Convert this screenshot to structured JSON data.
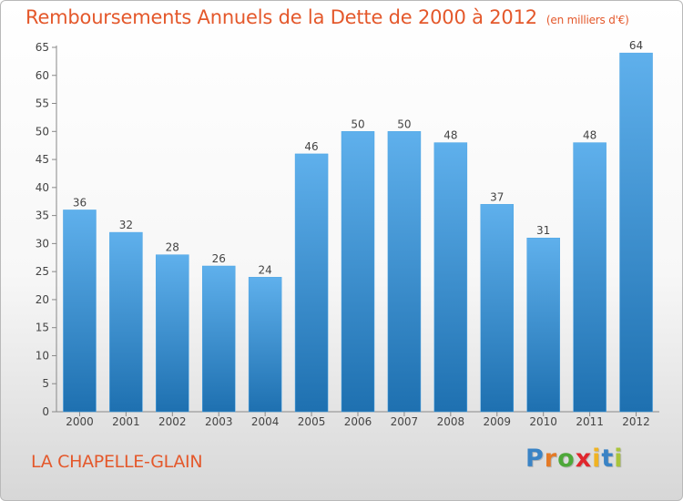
{
  "title": "Remboursements Annuels de la Dette de 2000 à 2012",
  "unit_note": "(en milliers d'€)",
  "location": "LA CHAPELLE-GLAIN",
  "logo": {
    "letters": [
      "P",
      "r",
      "o",
      "x",
      "i",
      "t",
      "i"
    ],
    "colors": [
      "#3a83c5",
      "#e47a26",
      "#4ea83a",
      "#e0262d",
      "#f0b323",
      "#3a83c5",
      "#a9c43b"
    ]
  },
  "colors": {
    "bar": "#3f97d8",
    "bar_light": "#5fb0ec",
    "bar_dark": "#1e70b0",
    "title": "#e4582b",
    "axis": "#888888"
  },
  "chart_data": {
    "type": "bar",
    "categories": [
      "2000",
      "2001",
      "2002",
      "2003",
      "2004",
      "2005",
      "2006",
      "2007",
      "2008",
      "2009",
      "2010",
      "2011",
      "2012"
    ],
    "values": [
      36,
      32,
      28,
      26,
      24,
      46,
      50,
      50,
      48,
      37,
      31,
      48,
      64
    ],
    "data_labels": [
      "36",
      "32",
      "28",
      "26",
      "24",
      "46",
      "50",
      "50",
      "48",
      "37",
      "31",
      "48",
      "64"
    ],
    "yticks": [
      "0",
      "5",
      "10",
      "15",
      "20",
      "25",
      "30",
      "35",
      "40",
      "45",
      "50",
      "55",
      "60",
      "65"
    ],
    "ylim": [
      0,
      65
    ],
    "grid": false,
    "legend": "none"
  }
}
